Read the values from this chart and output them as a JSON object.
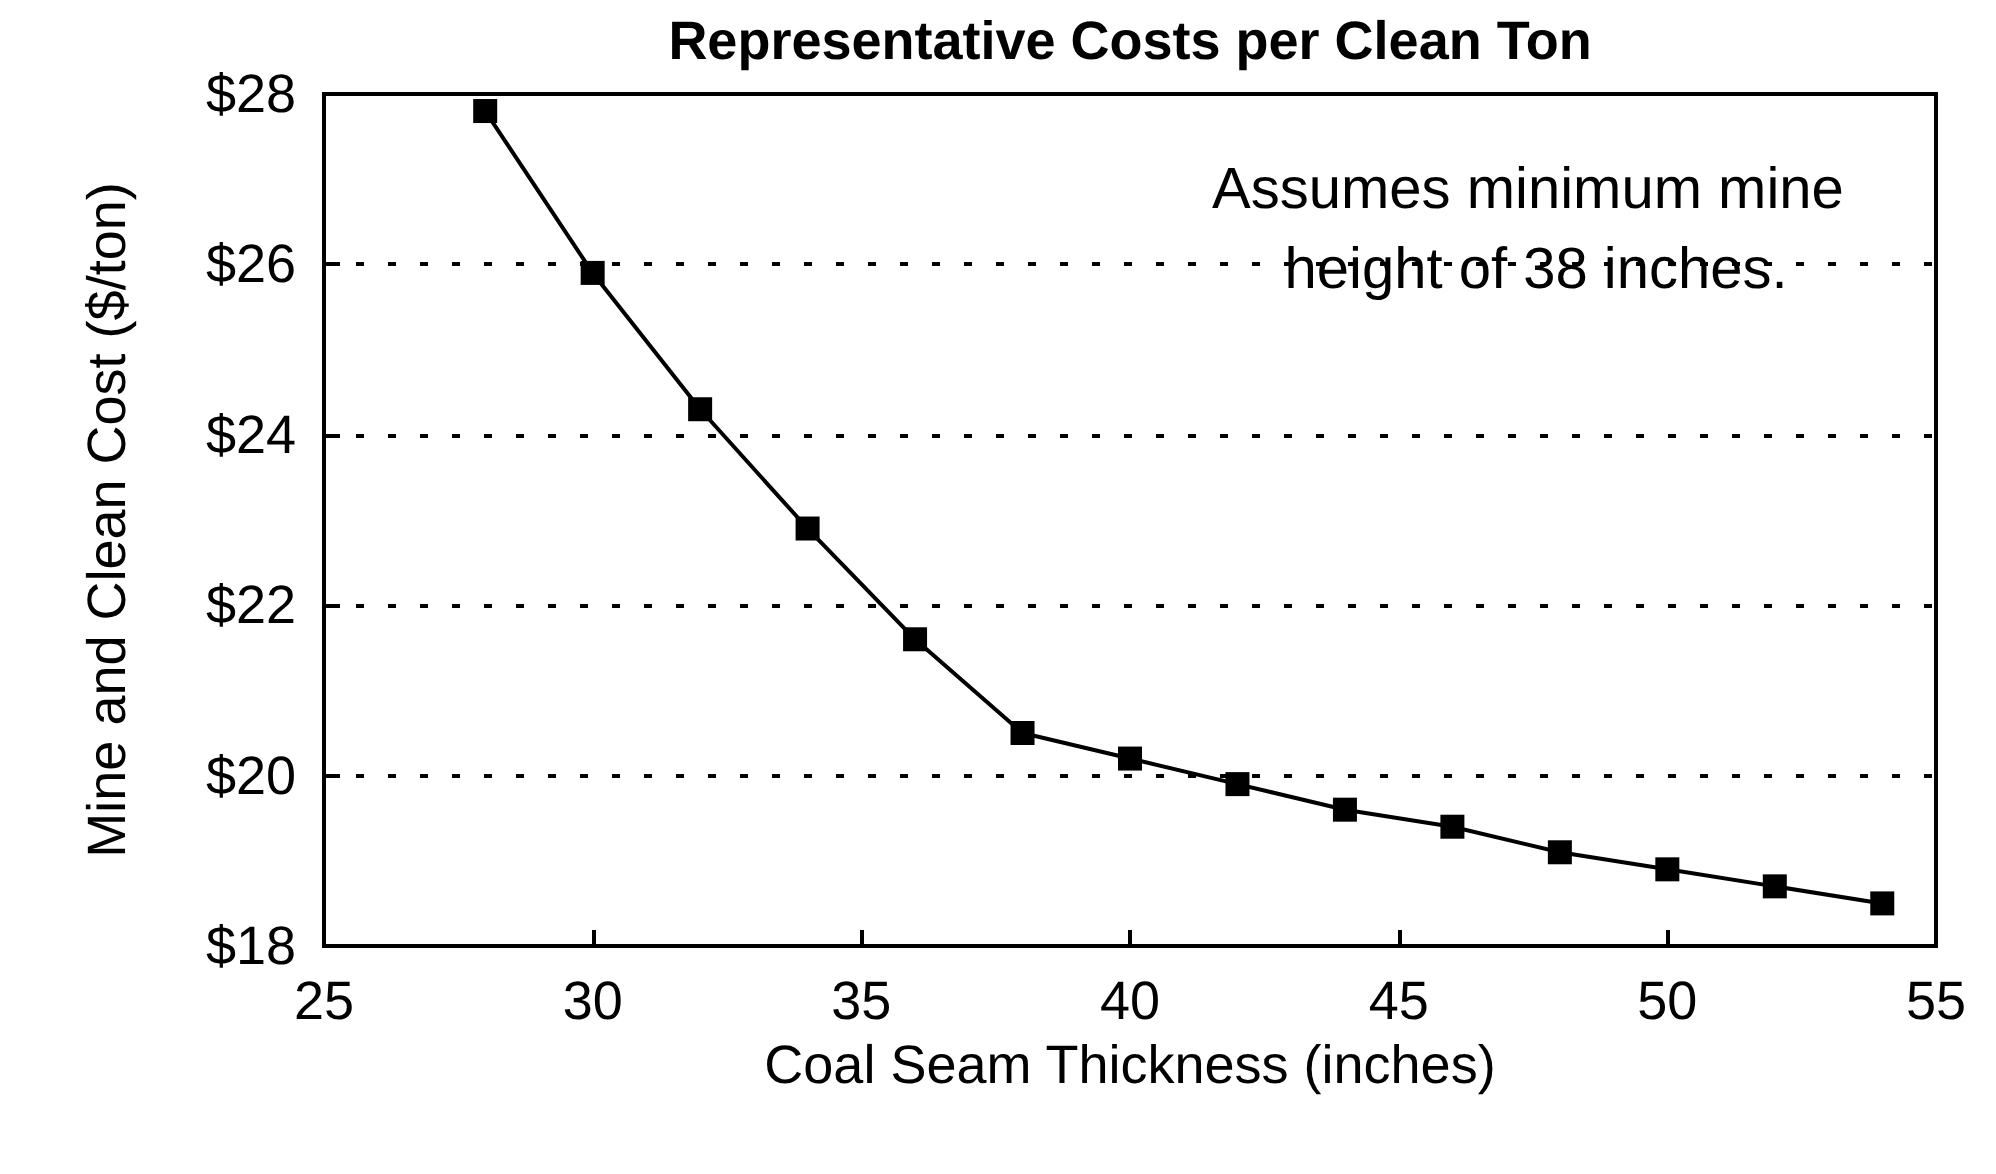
{
  "chart_data": {
    "type": "line",
    "title": "Representative Costs per Clean Ton",
    "xlabel": "Coal Seam Thickness (inches)",
    "ylabel": "Mine and Clean Cost ($/ton)",
    "annotations": [
      "Assumes minimum mine height of 38 inches."
    ],
    "x": [
      28,
      30,
      32,
      34,
      36,
      38,
      40,
      42,
      44,
      46,
      48,
      50,
      52,
      54
    ],
    "series": [
      {
        "color": "#000000",
        "values": [
          27.8,
          25.9,
          24.3,
          22.9,
          21.6,
          20.5,
          20.2,
          19.9,
          19.6,
          19.4,
          19.1,
          18.9,
          18.7,
          18.5
        ]
      }
    ],
    "xlim": [
      25,
      55
    ],
    "xticks": [
      25,
      30,
      35,
      40,
      45,
      50,
      55
    ],
    "ylim": [
      18,
      28
    ],
    "yticks": [
      {
        "value": 18,
        "label": "$18"
      },
      {
        "value": 20,
        "label": "$20"
      },
      {
        "value": 22,
        "label": "$22"
      },
      {
        "value": 24,
        "label": "$24"
      },
      {
        "value": 26,
        "label": "$26"
      },
      {
        "value": 28,
        "label": "$28"
      }
    ],
    "grid": "y",
    "marker": "square",
    "line_style": "solid"
  }
}
